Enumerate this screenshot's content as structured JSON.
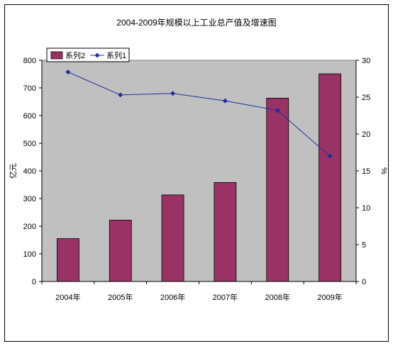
{
  "chart_data": {
    "type": "bar",
    "title": "2004-2009年规模以上工业总产值及增速图",
    "categories": [
      "2004年",
      "2005年",
      "2006年",
      "2007年",
      "2008年",
      "2009年"
    ],
    "series": [
      {
        "name": "系列2",
        "kind": "bar",
        "axis": "left",
        "color": "#993366",
        "values": [
          155,
          222,
          313,
          358,
          663,
          751
        ]
      },
      {
        "name": "系列1",
        "kind": "line",
        "axis": "right",
        "color": "#1F2F9F",
        "values": [
          28.4,
          25.3,
          25.5,
          24.5,
          23.2,
          17.0
        ]
      }
    ],
    "ylabel": "亿元",
    "y2label": "%",
    "ylim": [
      0,
      800
    ],
    "y2lim": [
      0,
      30
    ],
    "yticks": [
      0,
      100,
      200,
      300,
      400,
      500,
      600,
      700,
      800
    ],
    "y2ticks": [
      0,
      5,
      10,
      15,
      20,
      25,
      30
    ],
    "plot_background": "#C0C0C0",
    "grid": false,
    "legend": "top-left"
  }
}
